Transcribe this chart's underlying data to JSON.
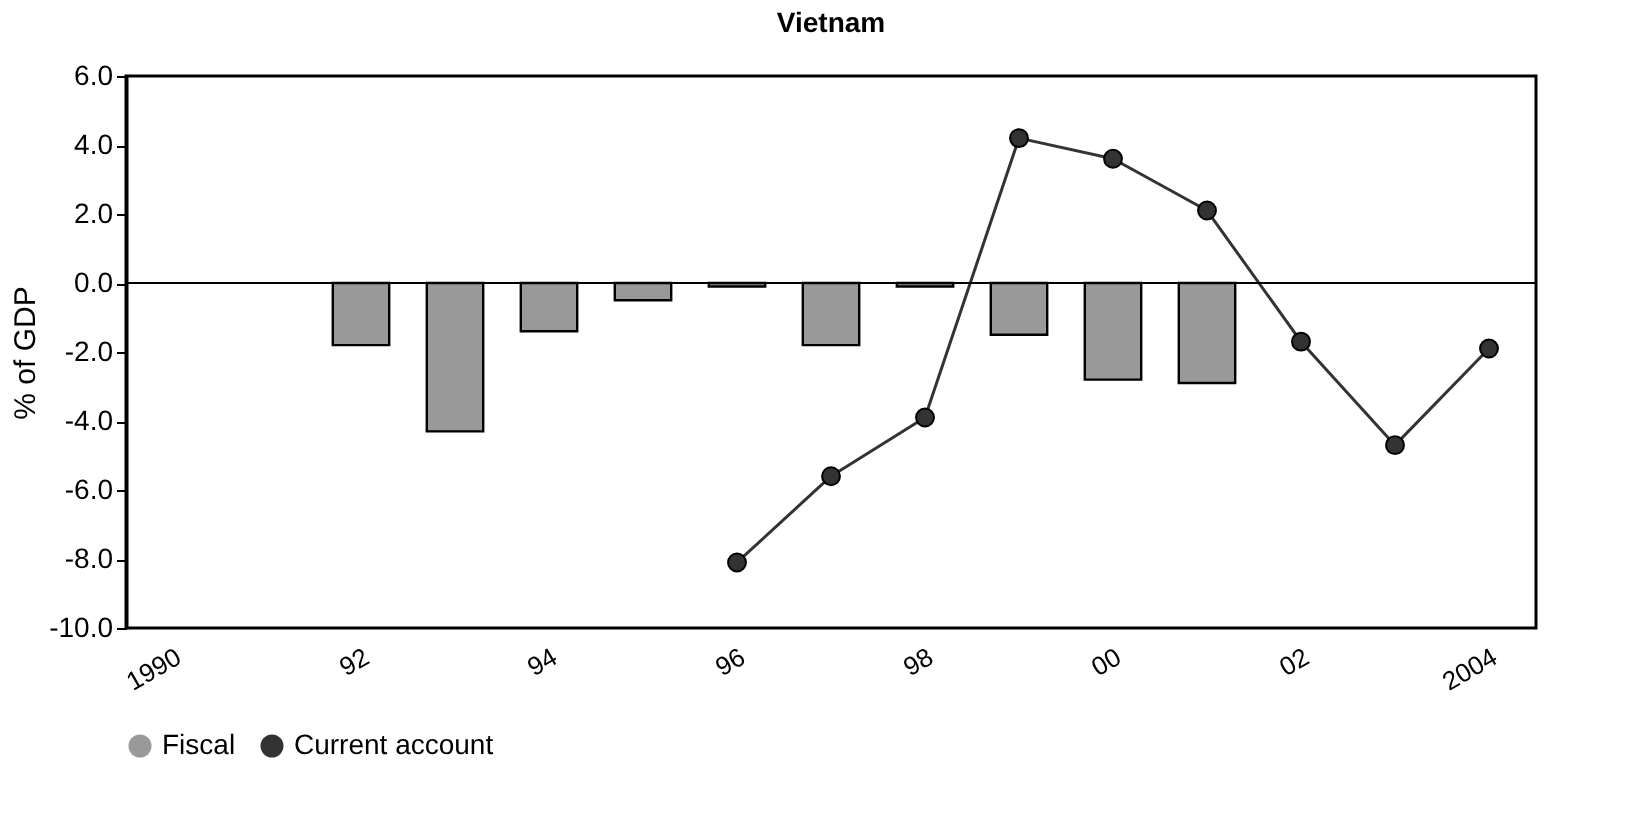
{
  "chart_data": {
    "type": "bar",
    "title": "Vietnam",
    "ylabel": "% of GDP",
    "categories": [
      "1990",
      null,
      "92",
      null,
      "94",
      null,
      "96",
      null,
      "98",
      null,
      "00",
      null,
      "02",
      null,
      "2004"
    ],
    "series": [
      {
        "name": "Fiscal",
        "color": "#999999",
        "values": [
          null,
          null,
          -1.8,
          -4.3,
          -1.4,
          -0.5,
          -0.1,
          -1.8,
          -0.1,
          -1.5,
          -2.8,
          -2.9,
          null,
          null,
          null
        ]
      },
      {
        "name": "Current account",
        "type": "line",
        "color": "#333333",
        "values": [
          null,
          null,
          null,
          null,
          null,
          null,
          -8.1,
          -5.6,
          -3.9,
          4.2,
          3.6,
          2.1,
          -1.7,
          -4.7,
          -1.9
        ]
      }
    ],
    "ylim": [
      -10,
      6
    ],
    "yticks": [
      {
        "value": -10,
        "label": "-10.0"
      },
      {
        "value": -8,
        "label": "-8.0"
      },
      {
        "value": -6,
        "label": "-6.0"
      },
      {
        "value": -4,
        "label": "-4.0"
      },
      {
        "value": -2,
        "label": "-2.0"
      },
      {
        "value": 0,
        "label": "0.0"
      },
      {
        "value": 2,
        "label": "2.0"
      },
      {
        "value": 4,
        "label": "4.0"
      },
      {
        "value": 6,
        "label": "6.0"
      }
    ],
    "ref_lines": [
      {
        "axis": "y",
        "value": 0,
        "color": "#000000"
      }
    ],
    "grid": false,
    "legend": "bottom",
    "marker": "circle",
    "line_style": "solid"
  }
}
